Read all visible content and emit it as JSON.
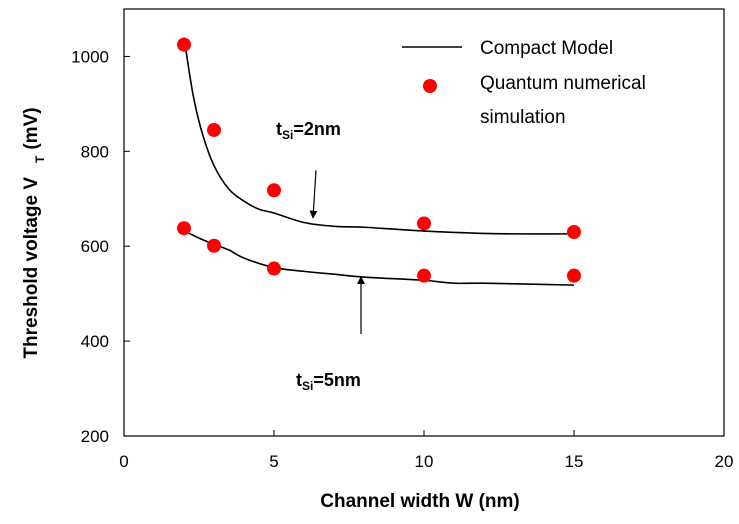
{
  "chart_data": {
    "type": "line",
    "xlabel": "Channel width W (nm)",
    "ylabel_main": "Threshold voltage V",
    "ylabel_sub": "T",
    "ylabel_unit": "(mV)",
    "xlim": [
      0,
      20
    ],
    "ylim": [
      200,
      1100
    ],
    "xticks": [
      0,
      5,
      10,
      15,
      20
    ],
    "yticks": [
      200,
      400,
      600,
      800,
      1000
    ],
    "grid": false,
    "legend_position": "top-right",
    "legend": [
      {
        "label": "Compact Model",
        "marker": "line"
      },
      {
        "label": "Quantum numerical simulation",
        "marker": "red-dot"
      }
    ],
    "legend_lines": [
      "Compact Model",
      "Quantum numerical",
      "simulation"
    ],
    "series": [
      {
        "name": "Compact Model",
        "label": "tSi=2nm",
        "kind": "line",
        "color": "#000000",
        "x": [
          2.0,
          2.3,
          2.6,
          3.0,
          3.5,
          4.0,
          4.5,
          5.0,
          6.0,
          7.0,
          8.0,
          10.0,
          12.0,
          13.0,
          15.0
        ],
        "y": [
          1040,
          920,
          840,
          770,
          720,
          695,
          678,
          670,
          650,
          642,
          640,
          632,
          627,
          626,
          626
        ]
      },
      {
        "name": "Compact Model",
        "label": "tSi=5nm",
        "kind": "line",
        "color": "#000000",
        "x": [
          2.0,
          2.5,
          3.0,
          3.5,
          4.0,
          5.0,
          6.0,
          7.0,
          8.0,
          10.0,
          11.0,
          12.0,
          15.0
        ],
        "y": [
          633,
          617,
          604,
          592,
          575,
          555,
          547,
          541,
          535,
          528,
          522,
          522,
          518
        ]
      },
      {
        "name": "Quantum numerical simulation",
        "label": "tSi=2nm",
        "kind": "scatter",
        "color": "#ff0000",
        "x": [
          2,
          3,
          5,
          10,
          15
        ],
        "y": [
          1025,
          845,
          718,
          648,
          630
        ]
      },
      {
        "name": "Quantum numerical simulation",
        "label": "tSi=5nm",
        "kind": "scatter",
        "color": "#ff0000",
        "x": [
          2,
          3,
          5,
          10,
          15
        ],
        "y": [
          638,
          601,
          553,
          538,
          538
        ]
      }
    ],
    "annotations": [
      {
        "main": "t",
        "sub": "Si",
        "rest": "=2nm",
        "arrow_from": [
          6.4,
          760
        ],
        "arrow_to": [
          6.3,
          660
        ]
      },
      {
        "main": "t",
        "sub": "Si",
        "rest": "=5nm",
        "arrow_from": [
          7.9,
          415
        ],
        "arrow_to": [
          7.9,
          535
        ]
      }
    ]
  }
}
